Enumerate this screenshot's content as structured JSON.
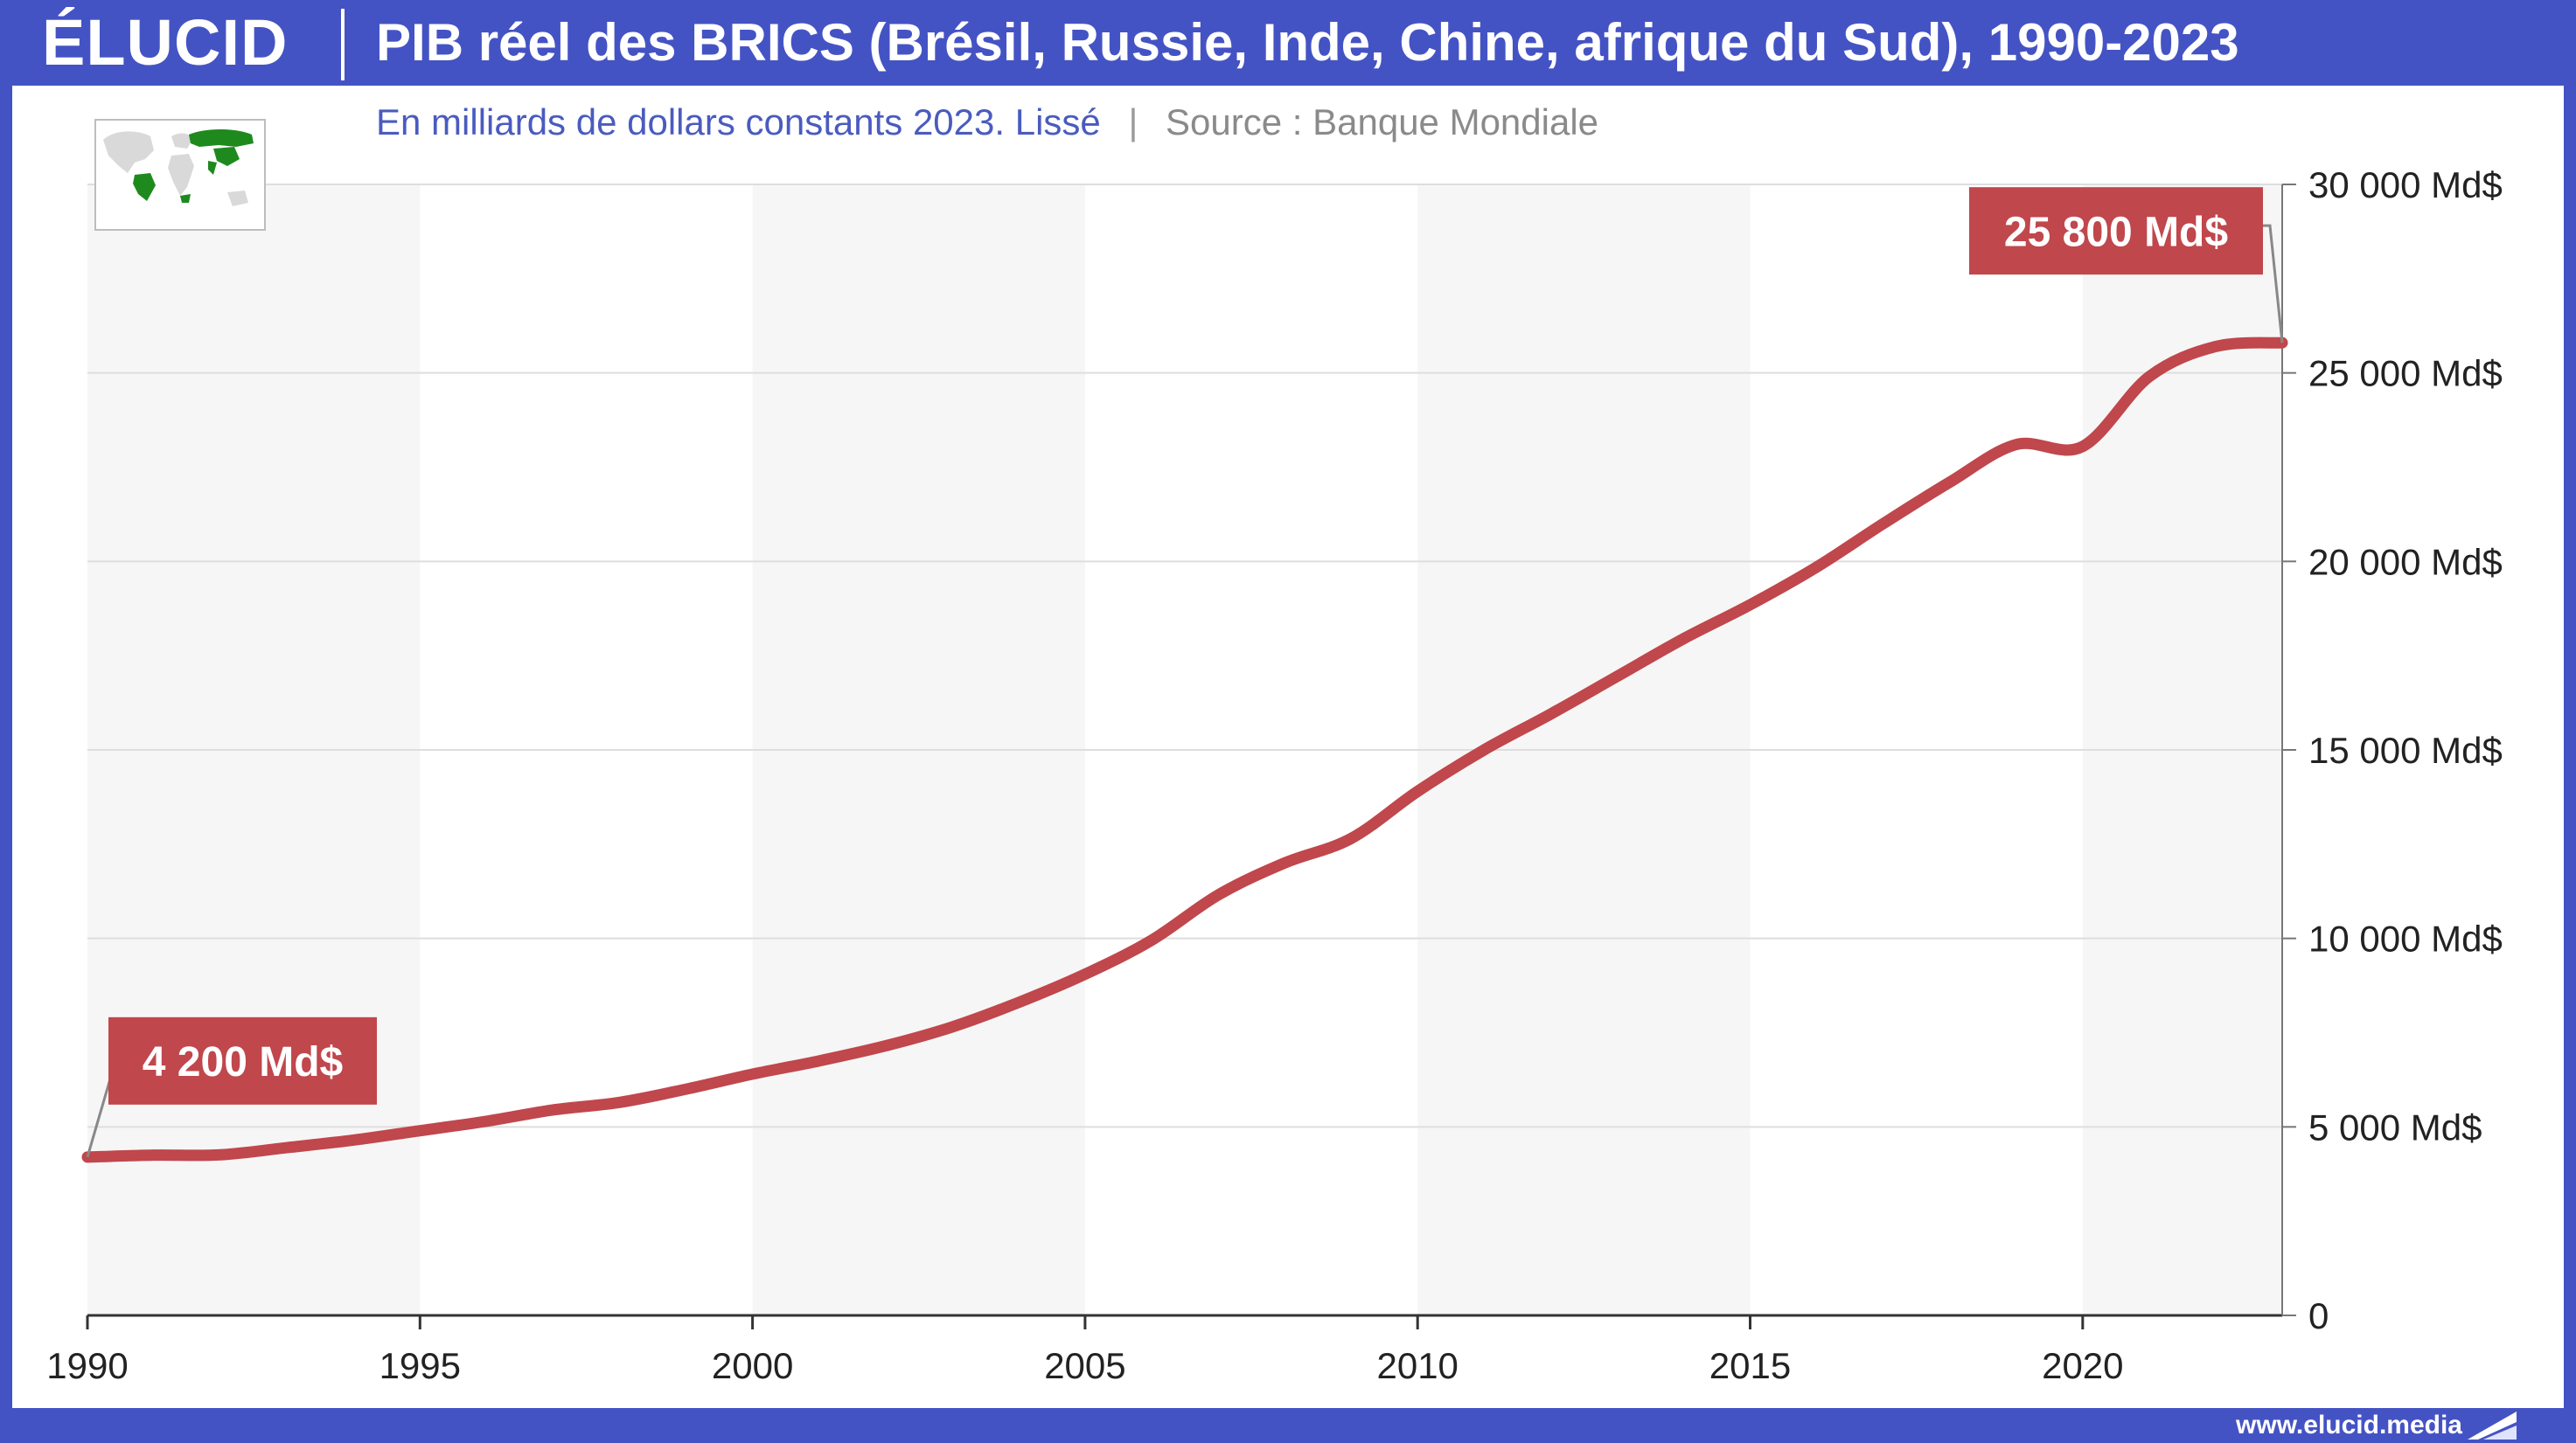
{
  "header": {
    "logo_text": "ÉLUCID",
    "title": "PIB réel des BRICS (Brésil, Russie, Inde, Chine, afrique du Sud), 1990-2023"
  },
  "subtitle": {
    "main": "En milliards de dollars constants 2023. Lissé",
    "separator": "|",
    "source": "Source : Banque Mondiale"
  },
  "footer": {
    "url": "www.elucid.media"
  },
  "map": {
    "icon": "world-map-brics-icon",
    "highlight_color": "#1e8a1e",
    "base_color": "#d9d9d9"
  },
  "colors": {
    "header_bg": "#4453c4",
    "line": "#c0474c",
    "label_bg": "#c0474c",
    "band": "#f6f6f6",
    "grid": "#dedede",
    "axis_text": "#222222"
  },
  "chart_data": {
    "type": "line",
    "title": "PIB réel des BRICS (Brésil, Russie, Inde, Chine, afrique du Sud), 1990-2023",
    "xlabel": "",
    "ylabel": "",
    "xlim": [
      1990,
      2023
    ],
    "ylim": [
      0,
      30000
    ],
    "x_ticks": [
      1990,
      1995,
      2000,
      2005,
      2010,
      2015,
      2020
    ],
    "x_tick_labels": [
      "1990",
      "1995",
      "2000",
      "2005",
      "2010",
      "2015",
      "2020"
    ],
    "y_ticks": [
      0,
      5000,
      10000,
      15000,
      20000,
      25000,
      30000
    ],
    "y_tick_labels": [
      "0",
      "5 000 Md$",
      "10 000 Md$",
      "15 000 Md$",
      "20 000 Md$",
      "25 000 Md$",
      "30 000 Md$"
    ],
    "y_axis_side": "right",
    "grid": true,
    "alternating_bands": true,
    "series": [
      {
        "color": "#c0474c",
        "x": [
          1990,
          1991,
          1992,
          1993,
          1994,
          1995,
          1996,
          1997,
          1998,
          1999,
          2000,
          2001,
          2002,
          2003,
          2004,
          2005,
          2006,
          2007,
          2008,
          2009,
          2010,
          2011,
          2012,
          2013,
          2014,
          2015,
          2016,
          2017,
          2018,
          2019,
          2020,
          2021,
          2022,
          2023
        ],
        "y": [
          4200,
          4250,
          4260,
          4450,
          4650,
          4900,
          5150,
          5450,
          5650,
          6000,
          6400,
          6750,
          7150,
          7650,
          8300,
          9050,
          9950,
          11150,
          12000,
          12650,
          13900,
          15000,
          15950,
          16950,
          17950,
          18850,
          19850,
          21000,
          22100,
          23100,
          23050,
          24900,
          25700,
          25800
        ]
      }
    ],
    "annotations": [
      {
        "x": 1990,
        "y": 4200,
        "text": "4 200 Md$",
        "placement": "above-right"
      },
      {
        "x": 2023,
        "y": 25800,
        "text": "25 800 Md$",
        "placement": "above-left"
      }
    ]
  }
}
